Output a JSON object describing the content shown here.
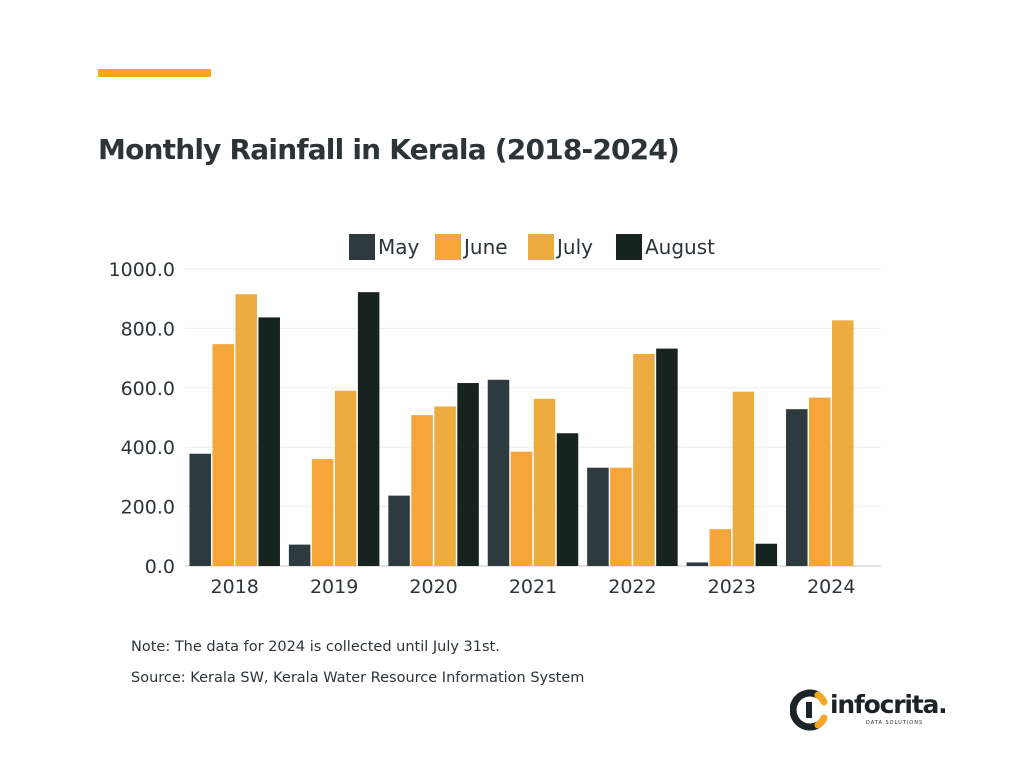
{
  "title": "Monthly Rainfall in Kerala (2018-2024)",
  "note": "Note: The data for 2024 is collected until July 31st.",
  "source": "Source: Kerala SW, Kerala Water Resource Information System",
  "logo": {
    "word": "infocrita.",
    "tagline": "DATA SOLUTIONS",
    "colors": {
      "ring": "#1c2326",
      "accent": "#f5a623"
    }
  },
  "colors": {
    "accent": "#f5a623",
    "May": "#2d3a3f",
    "June": "#f5a53a",
    "July": "#ecac40",
    "August": "#16231f"
  },
  "chart_data": {
    "type": "bar",
    "categories": [
      "2018",
      "2019",
      "2020",
      "2021",
      "2022",
      "2023",
      "2024"
    ],
    "series": [
      {
        "name": "May",
        "values": [
          378,
          72,
          237,
          627,
          331,
          12,
          528
        ]
      },
      {
        "name": "June",
        "values": [
          747,
          360,
          508,
          385,
          331,
          124,
          567
        ]
      },
      {
        "name": "July",
        "values": [
          915,
          590,
          537,
          563,
          714,
          587,
          827
        ]
      },
      {
        "name": "August",
        "values": [
          837,
          922,
          616,
          447,
          732,
          75,
          null
        ]
      }
    ],
    "yticks": [
      "0.0",
      "200.0",
      "400.0",
      "600.0",
      "800.0",
      "1000.0"
    ],
    "ylim": [
      0,
      1000
    ],
    "grid": true,
    "legend": "top-center",
    "xlabel": "",
    "ylabel": ""
  }
}
